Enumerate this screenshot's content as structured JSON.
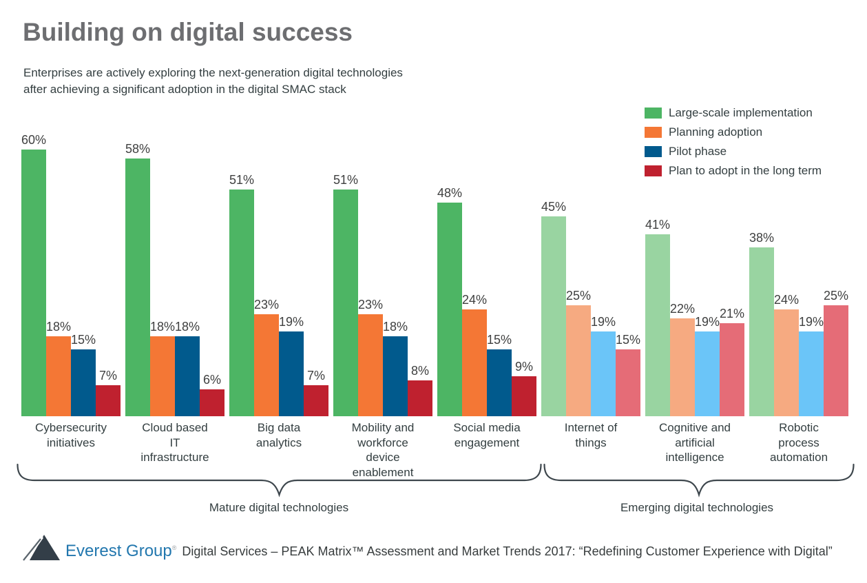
{
  "title": "Building on digital success",
  "subtitle": "Enterprises are actively exploring the next-generation digital technologies\nafter achieving a significant adoption in the digital SMAC stack",
  "chart_data": {
    "type": "bar",
    "unit": "%",
    "ylim": [
      0,
      60
    ],
    "grid": false,
    "legend_position": "top-right",
    "value_suffix": "%",
    "categories": [
      {
        "label": "Cybersecurity\ninitiatives",
        "group": "mature"
      },
      {
        "label": "Cloud based\nIT\ninfrastructure",
        "group": "mature"
      },
      {
        "label": "Big data\nanalytics",
        "group": "mature"
      },
      {
        "label": "Mobility and\nworkforce\ndevice\nenablement",
        "group": "mature"
      },
      {
        "label": "Social media\nengagement",
        "group": "mature"
      },
      {
        "label": "Internet of\nthings",
        "group": "emerging"
      },
      {
        "label": "Cognitive and\nartificial\nintelligence",
        "group": "emerging"
      },
      {
        "label": "Robotic\nprocess\nautomation",
        "group": "emerging"
      }
    ],
    "series": [
      {
        "name": "Large-scale implementation",
        "color_mature": "#4db564",
        "color_emerging": "#99d4a1",
        "values": [
          60,
          58,
          51,
          51,
          48,
          45,
          41,
          38
        ]
      },
      {
        "name": "Planning adoption",
        "color_mature": "#f47735",
        "color_emerging": "#f6aa81",
        "values": [
          18,
          18,
          23,
          23,
          24,
          25,
          22,
          24
        ]
      },
      {
        "name": "Pilot phase",
        "color_mature": "#015a8d",
        "color_emerging": "#6bc5f8",
        "values": [
          15,
          18,
          19,
          18,
          15,
          19,
          19,
          19
        ]
      },
      {
        "name": "Plan to adopt in the long term",
        "color_mature": "#bf212f",
        "color_emerging": "#e56c77",
        "values": [
          7,
          6,
          7,
          8,
          9,
          15,
          21,
          25
        ]
      }
    ]
  },
  "sections": {
    "mature": {
      "label": "Mature digital technologies"
    },
    "emerging": {
      "label": "Emerging digital technologies"
    }
  },
  "footer": {
    "brand": "Everest Group",
    "registered": "®",
    "text": "Digital Services – PEAK Matrix™ Assessment and Market Trends 2017: “Redefining Customer Experience with Digital”"
  }
}
